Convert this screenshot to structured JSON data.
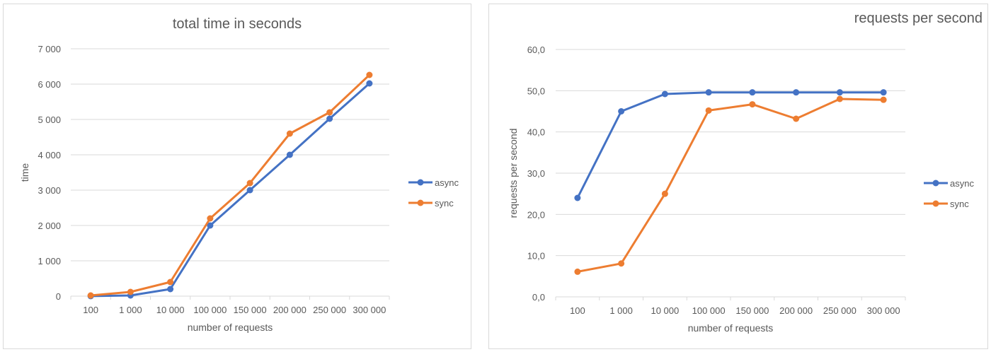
{
  "chart_data": [
    {
      "type": "line",
      "title": "total time in seconds",
      "xlabel": "number of requests",
      "ylabel": "time",
      "categories": [
        "100",
        "1 000",
        "10 000",
        "100 000",
        "150 000",
        "200 000",
        "250 000",
        "300 000"
      ],
      "ylim": [
        0,
        7000
      ],
      "yticks": [
        0,
        1000,
        2000,
        3000,
        4000,
        5000,
        6000,
        7000
      ],
      "ytick_labels": [
        "0",
        "1 000",
        "2 000",
        "3 000",
        "4 000",
        "5 000",
        "6 000",
        "7 000"
      ],
      "grid": true,
      "legend": "right",
      "series": [
        {
          "name": "async",
          "color": "#4472c4",
          "values": [
            2,
            20,
            200,
            2000,
            3000,
            4000,
            5020,
            6020
          ]
        },
        {
          "name": "sync",
          "color": "#ed7d31",
          "values": [
            20,
            120,
            400,
            2200,
            3200,
            4600,
            5200,
            6260
          ]
        }
      ]
    },
    {
      "type": "line",
      "title": "requests per second",
      "xlabel": "number of requests",
      "ylabel": "requests per second",
      "categories": [
        "100",
        "1 000",
        "10 000",
        "100 000",
        "150 000",
        "200 000",
        "250 000",
        "300 000"
      ],
      "ylim": [
        0,
        60
      ],
      "yticks": [
        0,
        10,
        20,
        30,
        40,
        50,
        60
      ],
      "ytick_labels": [
        "0,0",
        "10,0",
        "20,0",
        "30,0",
        "40,0",
        "50,0",
        "60,0"
      ],
      "grid": true,
      "legend": "right",
      "series": [
        {
          "name": "async",
          "color": "#4472c4",
          "values": [
            24.0,
            45.0,
            49.2,
            49.6,
            49.6,
            49.6,
            49.6,
            49.6
          ]
        },
        {
          "name": "sync",
          "color": "#ed7d31",
          "values": [
            6.1,
            8.1,
            25.0,
            45.2,
            46.7,
            43.2,
            48.0,
            47.8
          ]
        }
      ]
    }
  ]
}
